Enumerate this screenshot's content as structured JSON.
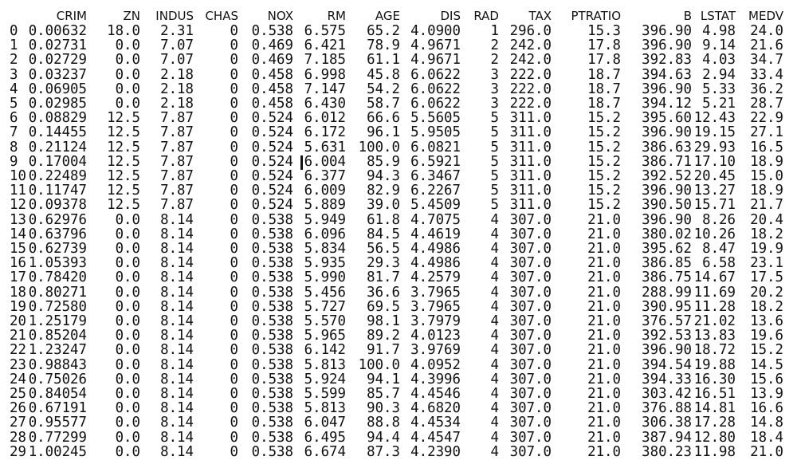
{
  "table": {
    "columns": [
      "CRIM",
      "ZN",
      "INDUS",
      "CHAS",
      "NOX",
      "RM",
      "AGE",
      "DIS",
      "RAD",
      "TAX",
      "PTRATIO",
      "B",
      "LSTAT",
      "MEDV"
    ],
    "rows": [
      [
        "0",
        "0.00632",
        "18.0",
        "2.31",
        "0",
        "0.538",
        "6.575",
        "65.2",
        "4.0900",
        "1",
        "296.0",
        "15.3",
        "396.90",
        "4.98",
        "24.0"
      ],
      [
        "1",
        "0.02731",
        "0.0",
        "7.07",
        "0",
        "0.469",
        "6.421",
        "78.9",
        "4.9671",
        "2",
        "242.0",
        "17.8",
        "396.90",
        "9.14",
        "21.6"
      ],
      [
        "2",
        "0.02729",
        "0.0",
        "7.07",
        "0",
        "0.469",
        "7.185",
        "61.1",
        "4.9671",
        "2",
        "242.0",
        "17.8",
        "392.83",
        "4.03",
        "34.7"
      ],
      [
        "3",
        "0.03237",
        "0.0",
        "2.18",
        "0",
        "0.458",
        "6.998",
        "45.8",
        "6.0622",
        "3",
        "222.0",
        "18.7",
        "394.63",
        "2.94",
        "33.4"
      ],
      [
        "4",
        "0.06905",
        "0.0",
        "2.18",
        "0",
        "0.458",
        "7.147",
        "54.2",
        "6.0622",
        "3",
        "222.0",
        "18.7",
        "396.90",
        "5.33",
        "36.2"
      ],
      [
        "5",
        "0.02985",
        "0.0",
        "2.18",
        "0",
        "0.458",
        "6.430",
        "58.7",
        "6.0622",
        "3",
        "222.0",
        "18.7",
        "394.12",
        "5.21",
        "28.7"
      ],
      [
        "6",
        "0.08829",
        "12.5",
        "7.87",
        "0",
        "0.524",
        "6.012",
        "66.6",
        "5.5605",
        "5",
        "311.0",
        "15.2",
        "395.60",
        "12.43",
        "22.9"
      ],
      [
        "7",
        "0.14455",
        "12.5",
        "7.87",
        "0",
        "0.524",
        "6.172",
        "96.1",
        "5.9505",
        "5",
        "311.0",
        "15.2",
        "396.90",
        "19.15",
        "27.1"
      ],
      [
        "8",
        "0.21124",
        "12.5",
        "7.87",
        "0",
        "0.524",
        "5.631",
        "100.0",
        "6.0821",
        "5",
        "311.0",
        "15.2",
        "386.63",
        "29.93",
        "16.5"
      ],
      [
        "9",
        "0.17004",
        "12.5",
        "7.87",
        "0",
        "0.524",
        "6.004",
        "85.9",
        "6.5921",
        "5",
        "311.0",
        "15.2",
        "386.71",
        "17.10",
        "18.9"
      ],
      [
        "10",
        "0.22489",
        "12.5",
        "7.87",
        "0",
        "0.524",
        "6.377",
        "94.3",
        "6.3467",
        "5",
        "311.0",
        "15.2",
        "392.52",
        "20.45",
        "15.0"
      ],
      [
        "11",
        "0.11747",
        "12.5",
        "7.87",
        "0",
        "0.524",
        "6.009",
        "82.9",
        "6.2267",
        "5",
        "311.0",
        "15.2",
        "396.90",
        "13.27",
        "18.9"
      ],
      [
        "12",
        "0.09378",
        "12.5",
        "7.87",
        "0",
        "0.524",
        "5.889",
        "39.0",
        "5.4509",
        "5",
        "311.0",
        "15.2",
        "390.50",
        "15.71",
        "21.7"
      ],
      [
        "13",
        "0.62976",
        "0.0",
        "8.14",
        "0",
        "0.538",
        "5.949",
        "61.8",
        "4.7075",
        "4",
        "307.0",
        "21.0",
        "396.90",
        "8.26",
        "20.4"
      ],
      [
        "14",
        "0.63796",
        "0.0",
        "8.14",
        "0",
        "0.538",
        "6.096",
        "84.5",
        "4.4619",
        "4",
        "307.0",
        "21.0",
        "380.02",
        "10.26",
        "18.2"
      ],
      [
        "15",
        "0.62739",
        "0.0",
        "8.14",
        "0",
        "0.538",
        "5.834",
        "56.5",
        "4.4986",
        "4",
        "307.0",
        "21.0",
        "395.62",
        "8.47",
        "19.9"
      ],
      [
        "16",
        "1.05393",
        "0.0",
        "8.14",
        "0",
        "0.538",
        "5.935",
        "29.3",
        "4.4986",
        "4",
        "307.0",
        "21.0",
        "386.85",
        "6.58",
        "23.1"
      ],
      [
        "17",
        "0.78420",
        "0.0",
        "8.14",
        "0",
        "0.538",
        "5.990",
        "81.7",
        "4.2579",
        "4",
        "307.0",
        "21.0",
        "386.75",
        "14.67",
        "17.5"
      ],
      [
        "18",
        "0.80271",
        "0.0",
        "8.14",
        "0",
        "0.538",
        "5.456",
        "36.6",
        "3.7965",
        "4",
        "307.0",
        "21.0",
        "288.99",
        "11.69",
        "20.2"
      ],
      [
        "19",
        "0.72580",
        "0.0",
        "8.14",
        "0",
        "0.538",
        "5.727",
        "69.5",
        "3.7965",
        "4",
        "307.0",
        "21.0",
        "390.95",
        "11.28",
        "18.2"
      ],
      [
        "20",
        "1.25179",
        "0.0",
        "8.14",
        "0",
        "0.538",
        "5.570",
        "98.1",
        "3.7979",
        "4",
        "307.0",
        "21.0",
        "376.57",
        "21.02",
        "13.6"
      ],
      [
        "21",
        "0.85204",
        "0.0",
        "8.14",
        "0",
        "0.538",
        "5.965",
        "89.2",
        "4.0123",
        "4",
        "307.0",
        "21.0",
        "392.53",
        "13.83",
        "19.6"
      ],
      [
        "22",
        "1.23247",
        "0.0",
        "8.14",
        "0",
        "0.538",
        "6.142",
        "91.7",
        "3.9769",
        "4",
        "307.0",
        "21.0",
        "396.90",
        "18.72",
        "15.2"
      ],
      [
        "23",
        "0.98843",
        "0.0",
        "8.14",
        "0",
        "0.538",
        "5.813",
        "100.0",
        "4.0952",
        "4",
        "307.0",
        "21.0",
        "394.54",
        "19.88",
        "14.5"
      ],
      [
        "24",
        "0.75026",
        "0.0",
        "8.14",
        "0",
        "0.538",
        "5.924",
        "94.1",
        "4.3996",
        "4",
        "307.0",
        "21.0",
        "394.33",
        "16.30",
        "15.6"
      ],
      [
        "25",
        "0.84054",
        "0.0",
        "8.14",
        "0",
        "0.538",
        "5.599",
        "85.7",
        "4.4546",
        "4",
        "307.0",
        "21.0",
        "303.42",
        "16.51",
        "13.9"
      ],
      [
        "26",
        "0.67191",
        "0.0",
        "8.14",
        "0",
        "0.538",
        "5.813",
        "90.3",
        "4.6820",
        "4",
        "307.0",
        "21.0",
        "376.88",
        "14.81",
        "16.6"
      ],
      [
        "27",
        "0.95577",
        "0.0",
        "8.14",
        "0",
        "0.538",
        "6.047",
        "88.8",
        "4.4534",
        "4",
        "307.0",
        "21.0",
        "306.38",
        "17.28",
        "14.8"
      ],
      [
        "28",
        "0.77299",
        "0.0",
        "8.14",
        "0",
        "0.538",
        "6.495",
        "94.4",
        "4.4547",
        "4",
        "307.0",
        "21.0",
        "387.94",
        "12.80",
        "18.4"
      ],
      [
        "29",
        "1.00245",
        "0.0",
        "8.14",
        "0",
        "0.538",
        "6.674",
        "87.3",
        "4.2390",
        "4",
        "307.0",
        "21.0",
        "380.23",
        "11.98",
        "21.0"
      ]
    ]
  }
}
